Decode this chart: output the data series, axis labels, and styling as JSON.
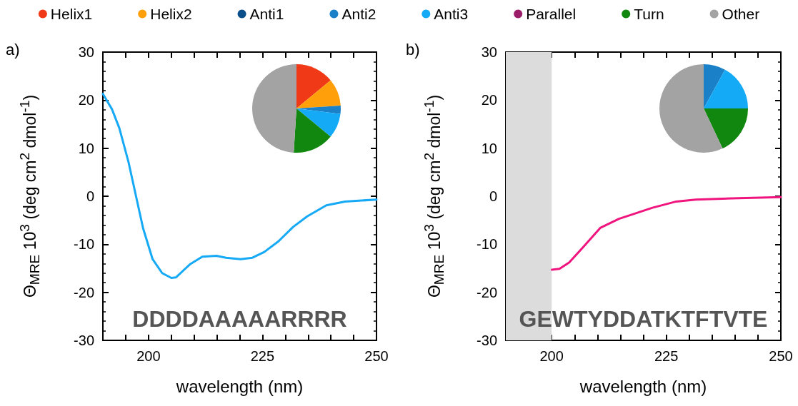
{
  "chart_data": [
    {
      "type": "line",
      "ylabel": "Θ$_{MRE}$ 10$^{3}$  (deg cm$^{2}$ dmol$^{-1}$)",
      "xlabel": "wavelength (nm)",
      "annotations": [
        "a)",
        "DDDDAAAAARRRR"
      ],
      "series": [
        {
          "color": "#16a9f5",
          "x": [
            190,
            192,
            193.6,
            195.6,
            197.2,
            198.8,
            200.9,
            203,
            205,
            206,
            209.2,
            211.8,
            214.9,
            217,
            220.2,
            222.8,
            225.4,
            228.5,
            231.7,
            234.8,
            239,
            243.1,
            250
          ],
          "values": [
            21.3,
            18.1,
            14.2,
            7.2,
            0.3,
            -6.6,
            -13.1,
            -16,
            -17,
            -16.9,
            -14.1,
            -12.6,
            -12.4,
            -12.8,
            -13.1,
            -12.8,
            -11.6,
            -9.4,
            -6.4,
            -4.2,
            -1.9,
            -1.1,
            -0.7
          ]
        }
      ],
      "xlim": [
        190,
        250
      ],
      "xticks": [
        {
          "value": 190,
          "label": null
        },
        {
          "value": 195,
          "label": null
        },
        200,
        {
          "value": 205,
          "label": null
        },
        {
          "value": 210,
          "label": null
        },
        {
          "value": 215,
          "label": null
        },
        {
          "value": 220,
          "label": null
        },
        225,
        {
          "value": 230,
          "label": null
        },
        {
          "value": 235,
          "label": null
        },
        {
          "value": 240,
          "label": null
        },
        {
          "value": 245,
          "label": null
        },
        250
      ],
      "ylim": [
        -30,
        30
      ],
      "yticks": [
        -30,
        -20,
        -10,
        0,
        10,
        20,
        30
      ],
      "marker": "none",
      "line_style": "solid"
    },
    {
      "type": "pie",
      "categories": [
        "Helix1",
        "Helix2",
        "Anti1",
        "Anti2",
        "Anti3",
        "Parallel",
        "Turn",
        "Other"
      ],
      "colors": [
        "#f03a17",
        "#ff9f0a",
        "#0b4f8a",
        "#1a80c8",
        "#14aaf5",
        "#9b1d6a",
        "#12870f",
        "#a3a3a3"
      ],
      "legend": "top",
      "series": [
        {
          "values": [
            14,
            10,
            0,
            3,
            9,
            0,
            15,
            49
          ]
        },
        {
          "values": [
            0,
            0,
            0,
            8,
            17,
            0,
            18,
            57
          ]
        }
      ]
    },
    {
      "type": "line",
      "ylabel": "Θ$_{MRE}$ 10$^{3}$  (deg cm$^{2}$ dmol$^{-1}$)",
      "xlabel": "wavelength (nm)",
      "annotations": [
        "b)",
        "GEWTYDDATKTFTVTE"
      ],
      "series": [
        {
          "color": "#f0147e",
          "x": [
            200.05,
            201.7,
            203.8,
            206.4,
            210.6,
            214.7,
            217.9,
            222,
            227.2,
            231.4,
            240.8,
            250
          ],
          "values": [
            -15.3,
            -15.1,
            -13.8,
            -11.1,
            -6.6,
            -4.7,
            -3.7,
            -2.4,
            -1.1,
            -0.7,
            -0.4,
            -0.2
          ]
        }
      ],
      "bands": [
        {
          "axis": "x",
          "from": 190,
          "to": 200,
          "color": "#dcdcdc"
        }
      ],
      "xlim": [
        190,
        250
      ],
      "xticks": [
        {
          "value": 190,
          "label": null
        },
        {
          "value": 195,
          "label": null
        },
        200,
        {
          "value": 205,
          "label": null
        },
        {
          "value": 210,
          "label": null
        },
        {
          "value": 215,
          "label": null
        },
        {
          "value": 220,
          "label": null
        },
        225,
        {
          "value": 230,
          "label": null
        },
        {
          "value": 235,
          "label": null
        },
        {
          "value": 240,
          "label": null
        },
        {
          "value": 245,
          "label": null
        },
        250
      ],
      "ylim": [
        -30,
        30
      ],
      "yticks": [
        -30,
        -20,
        -10,
        0,
        10,
        20,
        30
      ],
      "marker": "none",
      "line_style": "solid"
    }
  ]
}
